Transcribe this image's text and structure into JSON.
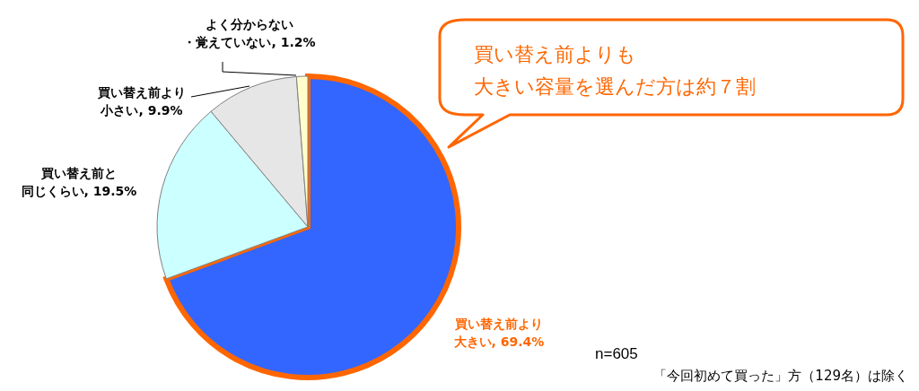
{
  "chart_data": {
    "type": "pie",
    "categories": [
      "買い替え前より大きい",
      "買い替え前と同じくらい",
      "買い替え前より小さい",
      "よく分からない・覚えていない"
    ],
    "values": [
      69.4,
      19.5,
      9.9,
      1.2
    ],
    "colors": [
      "#3366ff",
      "#ccffff",
      "#e6e6e6",
      "#ffffcc"
    ],
    "value_labels": [
      ", 69.4%",
      ", 19.5%",
      ", 9.9%",
      ", 1.2%"
    ],
    "annotations": [
      "買い替え前よりも大きい容量を選んだ方は約７割",
      "n=605",
      "「今回初めて買った」方（129名）は除く"
    ]
  }
}
